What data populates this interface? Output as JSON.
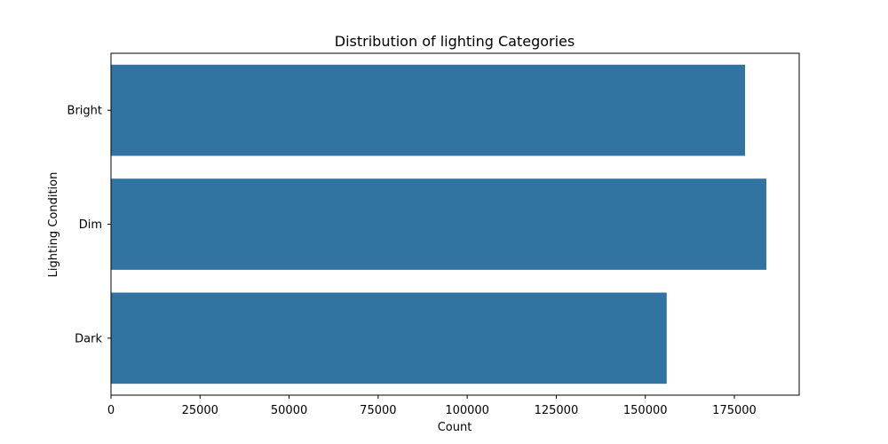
{
  "chart_data": {
    "type": "bar",
    "orientation": "horizontal",
    "title": "Distribution of lighting Categories",
    "xlabel": "Count",
    "ylabel": "Lighting Condition",
    "categories": [
      "Bright",
      "Dim",
      "Dark"
    ],
    "values": [
      178000,
      184000,
      156000
    ],
    "xlim": [
      0,
      193200
    ],
    "xticks": [
      0,
      25000,
      50000,
      75000,
      100000,
      125000,
      150000,
      175000
    ],
    "grid": false,
    "bar_color": "#3274a1"
  }
}
